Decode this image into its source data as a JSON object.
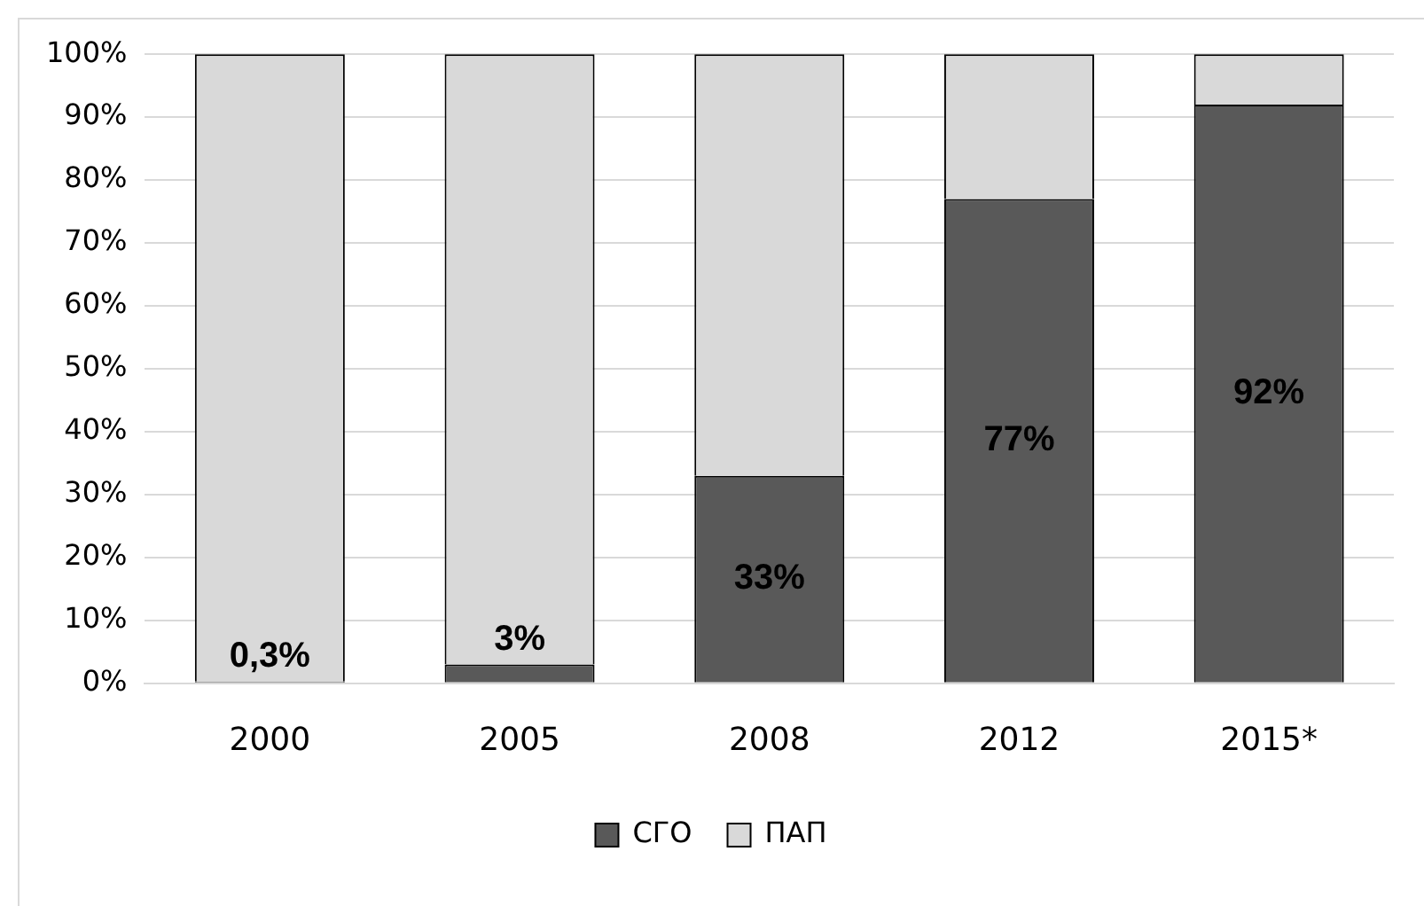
{
  "chart_data": {
    "type": "bar",
    "stacked": true,
    "categories": [
      "2000",
      "2005",
      "2008",
      "2012",
      "2015*"
    ],
    "series": [
      {
        "name": "СГО",
        "color": "#595959",
        "values": [
          0.3,
          3,
          33,
          77,
          92
        ],
        "value_labels": [
          "0,3%",
          "3%",
          "33%",
          "77%",
          "92%"
        ]
      },
      {
        "name": "ПАП",
        "color": "#d9d9d9",
        "values": [
          99.7,
          97,
          67,
          23,
          8
        ]
      }
    ],
    "ylim": [
      0,
      100
    ],
    "yticks": [
      {
        "value": 0,
        "label": "0%"
      },
      {
        "value": 10,
        "label": "10%"
      },
      {
        "value": 20,
        "label": "20%"
      },
      {
        "value": 30,
        "label": "30%"
      },
      {
        "value": 40,
        "label": "40%"
      },
      {
        "value": 50,
        "label": "50%"
      },
      {
        "value": 60,
        "label": "60%"
      },
      {
        "value": 70,
        "label": "70%"
      },
      {
        "value": 80,
        "label": "80%"
      },
      {
        "value": 90,
        "label": "90%"
      },
      {
        "value": 100,
        "label": "100%"
      }
    ],
    "grid": "y",
    "legend": "bottom"
  }
}
